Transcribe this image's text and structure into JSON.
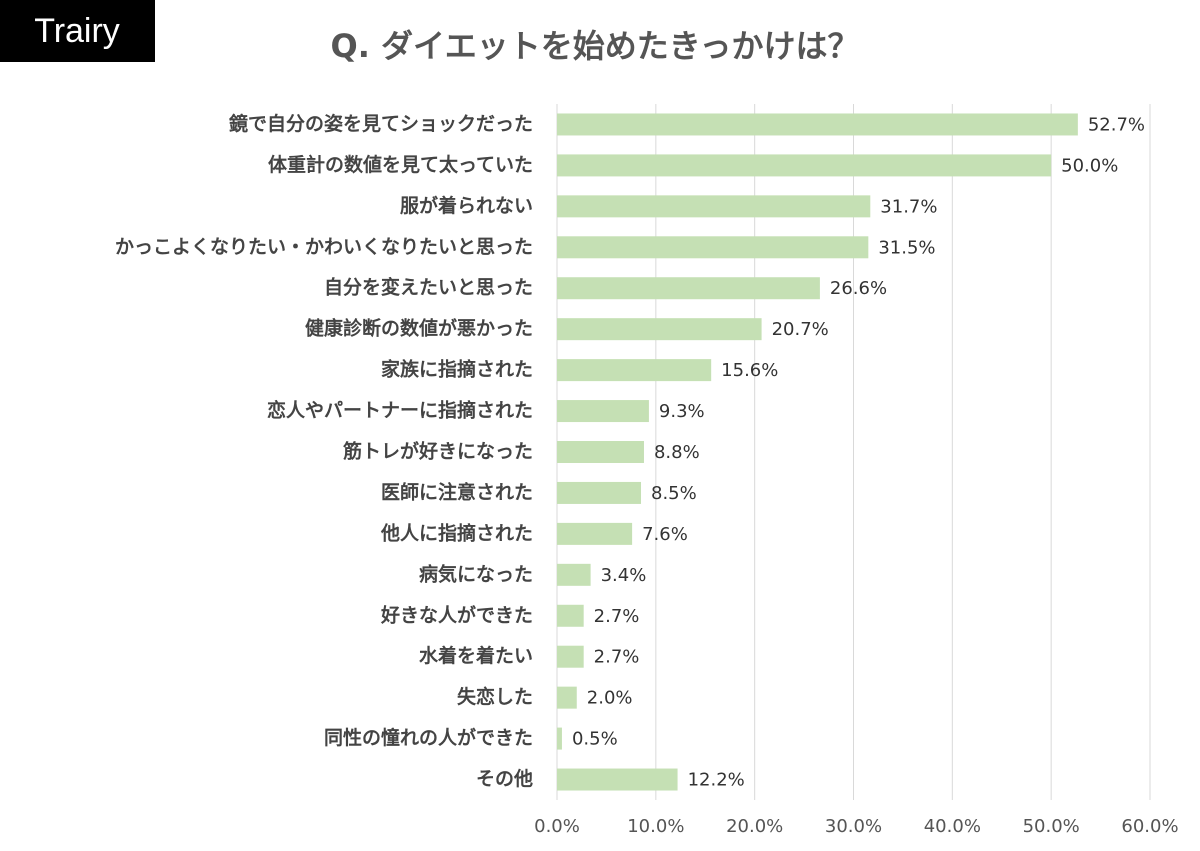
{
  "logo": "Trairy",
  "chart_data": {
    "type": "barh",
    "title": "Q. ダイエットを始めたきっかけは？",
    "categories": [
      "鏡で自分の姿を見てショックだった",
      "体重計の数値を見て太っていた",
      "服が着られない",
      "かっこよくなりたい・かわいくなりたいと思った",
      "自分を変えたいと思った",
      "健康診断の数値が悪かった",
      "家族に指摘された",
      "恋人やパートナーに指摘された",
      "筋トレが好きになった",
      "医師に注意された",
      "他人に指摘された",
      "病気になった",
      "好きな人ができた",
      "水着を着たい",
      "失恋した",
      "同性の憧れの人ができた",
      "その他"
    ],
    "values": [
      52.7,
      50.0,
      31.7,
      31.5,
      26.6,
      20.7,
      15.6,
      9.3,
      8.8,
      8.5,
      7.6,
      3.4,
      2.7,
      2.7,
      2.0,
      0.5,
      12.2
    ],
    "value_labels": [
      "52.7%",
      "50.0%",
      "31.7%",
      "31.5%",
      "26.6%",
      "20.7%",
      "15.6%",
      "9.3%",
      "8.8%",
      "8.5%",
      "7.6%",
      "3.4%",
      "2.7%",
      "2.7%",
      "2.0%",
      "0.5%",
      "12.2%"
    ],
    "color": "#c5e0b4",
    "xlim": [
      0,
      60
    ],
    "xticks": [
      {
        "value": 0,
        "label": "0.0%"
      },
      {
        "value": 10,
        "label": "10.0%"
      },
      {
        "value": 20,
        "label": "20.0%"
      },
      {
        "value": 30,
        "label": "30.0%"
      },
      {
        "value": 40,
        "label": "40.0%"
      },
      {
        "value": 50,
        "label": "50.0%"
      },
      {
        "value": 60,
        "label": "60.0%"
      }
    ],
    "grid": true
  }
}
